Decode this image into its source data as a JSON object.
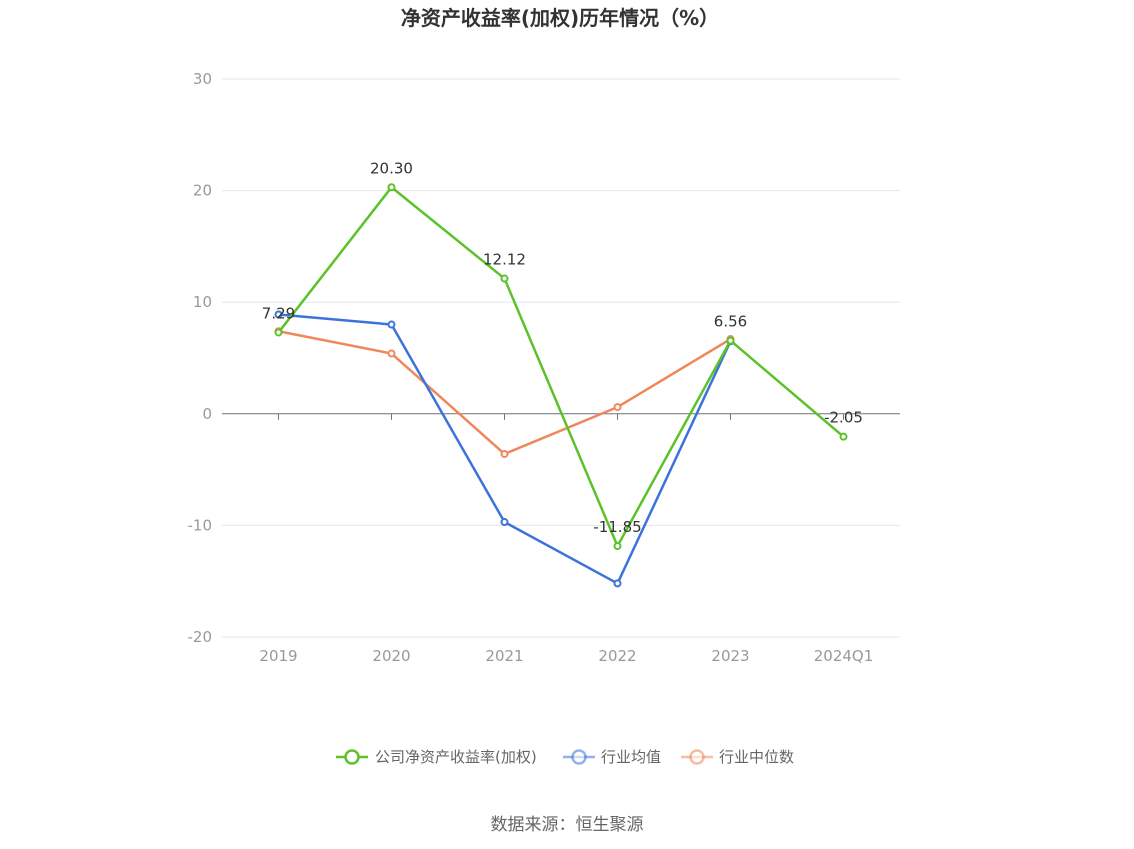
{
  "chart_data": {
    "type": "line",
    "title": "净资产收益率(加权)历年情况（%）",
    "categories": [
      "2019",
      "2020",
      "2021",
      "2022",
      "2023",
      "2024Q1"
    ],
    "ylim": [
      -20,
      30
    ],
    "yticks": [
      30,
      20,
      10,
      0,
      -10,
      -20
    ],
    "grid": true,
    "legend_position": "bottom",
    "series": [
      {
        "name": "公司净资产收益率(加权)",
        "color": "#5cc22a",
        "values": [
          7.29,
          20.3,
          12.12,
          -11.85,
          6.56,
          -2.05
        ],
        "labels": [
          "7.29",
          "20.30",
          "12.12",
          "-11.85",
          "6.56",
          "-2.05"
        ]
      },
      {
        "name": "行业均值",
        "color": "#3b73db",
        "values": [
          8.9,
          8.0,
          -9.7,
          -15.2,
          6.5,
          null
        ]
      },
      {
        "name": "行业中位数",
        "color": "#f0875a",
        "values": [
          7.4,
          5.4,
          -3.6,
          0.6,
          6.7,
          null
        ]
      }
    ]
  },
  "source": "数据来源：恒生聚源"
}
